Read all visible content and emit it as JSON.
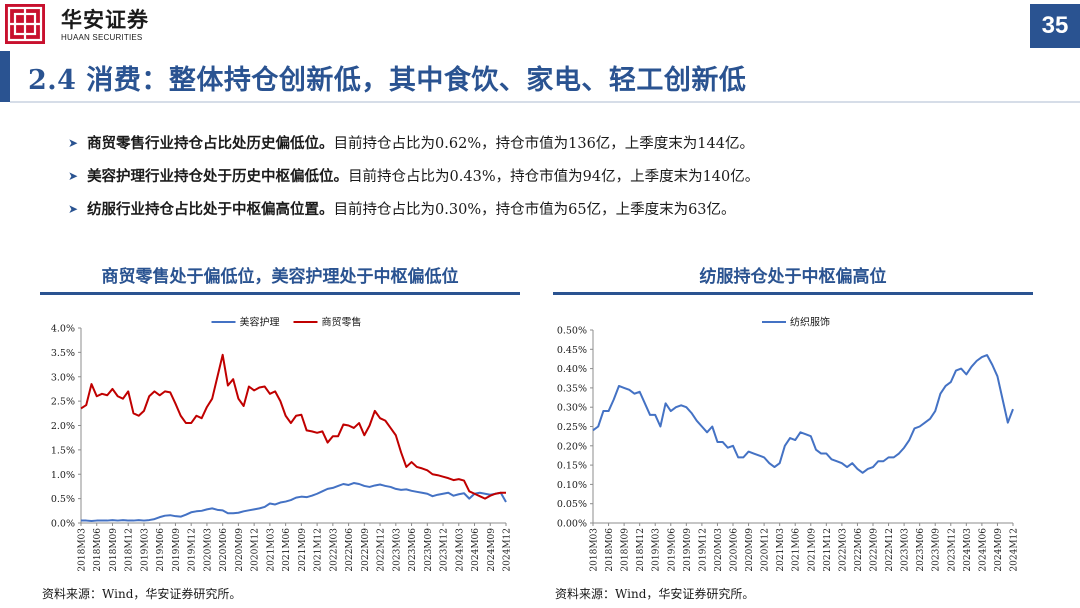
{
  "header": {
    "brand_cn": "华安证券",
    "brand_en": "HUAAN SECURITIES",
    "page_number": "35",
    "accent_color": "#2a5391",
    "logo_color": "#c8102e"
  },
  "title": "2.4 消费：整体持仓创新低，其中食饮、家电、轻工创新低",
  "bullets": [
    {
      "lead": "商贸零售行业持仓占比处历史偏低位。",
      "text": "目前持仓占比为0.62%，持仓市值为136亿，上季度末为144亿。"
    },
    {
      "lead": "美容护理行业持仓处于历史中枢偏低位。",
      "text": "目前持仓占比为0.43%，持仓市值为94亿，上季度末为140亿。"
    },
    {
      "lead": "纺服行业持仓占比处于中枢偏高位置。",
      "text": "目前持仓占比为0.30%，持仓市值为65亿，上季度末为63亿。"
    }
  ],
  "charts": {
    "left_title": "商贸零售处于偏低位，美容护理处于中枢偏低位",
    "right_title": "纺服持仓处于中枢偏高位",
    "source_left": "资料来源：Wind，华安证券研究所。",
    "source_right": "资料来源：Wind，华安证券研究所。"
  },
  "chart_data": [
    {
      "type": "line",
      "title": "商贸零售处于偏低位，美容护理处于中枢偏低位",
      "ylim": [
        0,
        4.0
      ],
      "yticks": [
        "0.0%",
        "0.5%",
        "1.0%",
        "1.5%",
        "2.0%",
        "2.5%",
        "3.0%",
        "3.5%",
        "4.0%"
      ],
      "ytick_values": [
        0,
        0.5,
        1.0,
        1.5,
        2.0,
        2.5,
        3.0,
        3.5,
        4.0
      ],
      "x_start_month": "2018-03",
      "x_end_month": "2024-12",
      "xticks": [
        "2018M03",
        "2018M06",
        "2018M09",
        "2018M12",
        "2019M03",
        "2019M06",
        "2019M09",
        "2019M12",
        "2020M03",
        "2020M06",
        "2020M09",
        "2020M12",
        "2021M03",
        "2021M06",
        "2021M09",
        "2021M12",
        "2022M03",
        "2022M06",
        "2022M09",
        "2022M12",
        "2023M03",
        "2023M06",
        "2023M09",
        "2023M12",
        "2024M03",
        "2024M06",
        "2024M09",
        "2024M12"
      ],
      "legend_position": "top",
      "grid": false,
      "series": [
        {
          "name": "美容护理",
          "color": "#4472c4",
          "values": [
            0.05,
            0.05,
            0.04,
            0.05,
            0.05,
            0.05,
            0.06,
            0.05,
            0.06,
            0.05,
            0.05,
            0.06,
            0.05,
            0.06,
            0.08,
            0.12,
            0.15,
            0.16,
            0.14,
            0.13,
            0.17,
            0.22,
            0.24,
            0.25,
            0.28,
            0.3,
            0.27,
            0.26,
            0.2,
            0.2,
            0.21,
            0.24,
            0.26,
            0.28,
            0.3,
            0.33,
            0.4,
            0.38,
            0.42,
            0.44,
            0.47,
            0.52,
            0.54,
            0.53,
            0.56,
            0.6,
            0.65,
            0.7,
            0.72,
            0.76,
            0.8,
            0.78,
            0.82,
            0.8,
            0.76,
            0.74,
            0.77,
            0.79,
            0.76,
            0.74,
            0.7,
            0.68,
            0.69,
            0.66,
            0.64,
            0.62,
            0.6,
            0.55,
            0.58,
            0.6,
            0.62,
            0.56,
            0.59,
            0.61,
            0.5,
            0.6,
            0.62,
            0.6,
            0.58,
            0.6,
            0.62,
            0.43
          ]
        },
        {
          "name": "商贸零售",
          "color": "#c00000",
          "values": [
            2.35,
            2.42,
            2.85,
            2.6,
            2.65,
            2.62,
            2.75,
            2.6,
            2.55,
            2.7,
            2.25,
            2.2,
            2.3,
            2.6,
            2.7,
            2.62,
            2.7,
            2.68,
            2.45,
            2.2,
            2.05,
            2.05,
            2.2,
            2.15,
            2.38,
            2.55,
            3.0,
            3.45,
            2.82,
            2.95,
            2.55,
            2.4,
            2.8,
            2.72,
            2.78,
            2.8,
            2.65,
            2.7,
            2.5,
            2.2,
            2.05,
            2.2,
            2.22,
            1.9,
            1.88,
            1.85,
            1.88,
            1.65,
            1.78,
            1.78,
            2.02,
            2.0,
            1.95,
            2.05,
            1.8,
            2.0,
            2.3,
            2.15,
            2.1,
            1.95,
            1.8,
            1.45,
            1.15,
            1.25,
            1.15,
            1.12,
            1.08,
            1.0,
            0.98,
            0.95,
            0.92,
            0.88,
            0.9,
            0.87,
            0.65,
            0.6,
            0.55,
            0.5,
            0.56,
            0.6,
            0.62,
            0.62
          ]
        }
      ]
    },
    {
      "type": "line",
      "title": "纺服持仓处于中枢偏高位",
      "ylim": [
        0,
        0.5
      ],
      "yticks": [
        "0.00%",
        "0.05%",
        "0.10%",
        "0.15%",
        "0.20%",
        "0.25%",
        "0.30%",
        "0.35%",
        "0.40%",
        "0.45%",
        "0.50%"
      ],
      "ytick_values": [
        0,
        0.05,
        0.1,
        0.15,
        0.2,
        0.25,
        0.3,
        0.35,
        0.4,
        0.45,
        0.5
      ],
      "xticks": [
        "2018M03",
        "2018M06",
        "2018M09",
        "2018M12",
        "2019M03",
        "2019M06",
        "2019M09",
        "2019M12",
        "2020M03",
        "2020M06",
        "2020M09",
        "2020M12",
        "2021M03",
        "2021M06",
        "2021M09",
        "2021M12",
        "2022M03",
        "2022M06",
        "2022M09",
        "2022M12",
        "2023M03",
        "2023M06",
        "2023M09",
        "2023M12",
        "2024M03",
        "2024M06",
        "2024M09",
        "2024M12"
      ],
      "legend_position": "top",
      "grid": false,
      "series": [
        {
          "name": "纺织服饰",
          "color": "#4472c4",
          "values": [
            0.24,
            0.25,
            0.29,
            0.29,
            0.32,
            0.355,
            0.35,
            0.345,
            0.335,
            0.34,
            0.31,
            0.28,
            0.28,
            0.25,
            0.31,
            0.29,
            0.3,
            0.305,
            0.3,
            0.285,
            0.265,
            0.25,
            0.235,
            0.25,
            0.21,
            0.21,
            0.195,
            0.2,
            0.17,
            0.17,
            0.185,
            0.18,
            0.175,
            0.17,
            0.155,
            0.145,
            0.155,
            0.2,
            0.22,
            0.215,
            0.235,
            0.23,
            0.225,
            0.19,
            0.18,
            0.18,
            0.165,
            0.16,
            0.155,
            0.145,
            0.155,
            0.14,
            0.13,
            0.14,
            0.145,
            0.16,
            0.16,
            0.17,
            0.17,
            0.18,
            0.195,
            0.215,
            0.245,
            0.25,
            0.26,
            0.27,
            0.29,
            0.335,
            0.355,
            0.365,
            0.395,
            0.4,
            0.385,
            0.405,
            0.42,
            0.43,
            0.435,
            0.41,
            0.38,
            0.32,
            0.26,
            0.295
          ]
        }
      ]
    }
  ]
}
